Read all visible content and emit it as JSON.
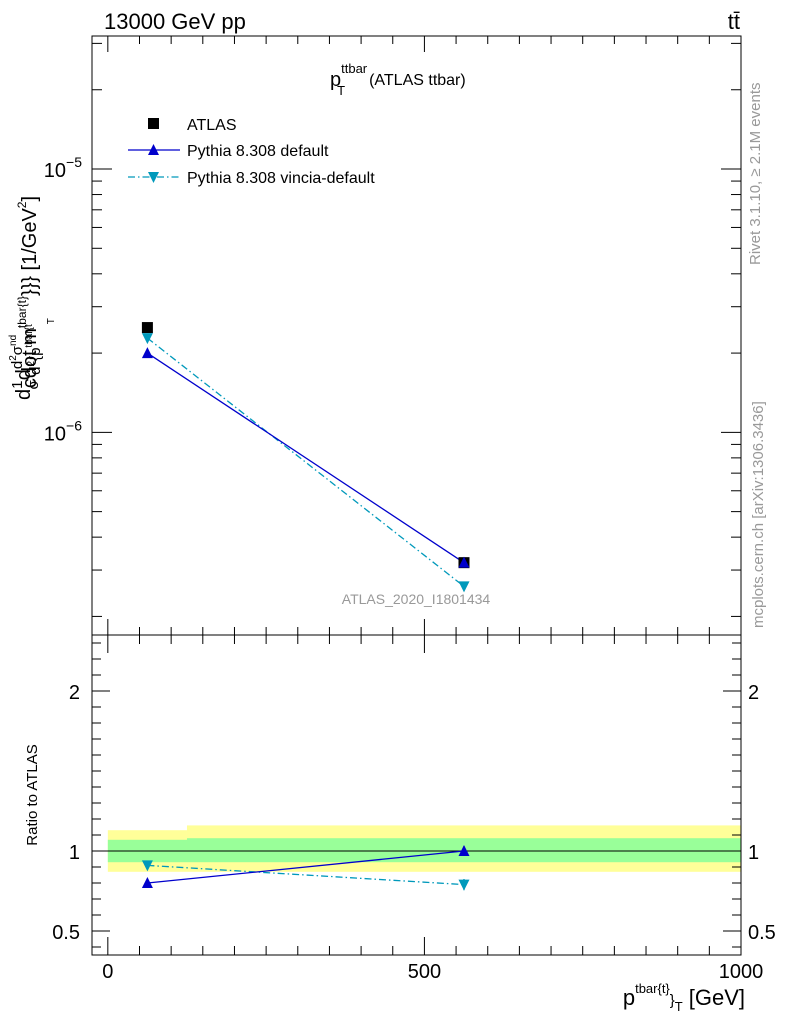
{
  "header": {
    "energy_label": "13000 GeV pp",
    "process_label": "tt̄"
  },
  "side_labels": {
    "rivet": "Rivet 3.1.10, ≥ 2.1M events",
    "source": "mcplots.cern.ch [arXiv:1306.3436]"
  },
  "watermark": "ATLAS_2020_I1801434",
  "colors": {
    "data": "#000000",
    "pythia_default": "#0000cc",
    "pythia_vincia": "#0099bb",
    "band_inner": "#99ff99",
    "band_outer": "#ffff99"
  },
  "chart_data": [
    {
      "type": "scatter",
      "title_main": "p",
      "title_sup": "ttbar",
      "title_sub": "T",
      "title_suffix": "(ATLAS ttbar)",
      "ylabel": "d(1/σ)d d²σ^{nd}/d² {p^{tbar{t}}_T cdot m^{tbar{t}}}} [1/GeV²]",
      "ylabel_parts": {
        "d1": "d",
        "frac_num": "1",
        "frac_den": "σ",
        "d2": "d",
        "num": "d",
        "num_sup": "2",
        "num_sym": "σ",
        "num_sup2": "nd",
        "den": "d",
        "den_sup": "2",
        "den_rest": "{p",
        "den_sup2": "tbar{t",
        "den_sub": "T",
        "rest": "cdot m",
        "rest_sup": "tbar{t}",
        "rest_tail": "}}} [1/GeV",
        "rest_tail_sup": "2",
        "rest_close": "]"
      },
      "yscale": "log",
      "ylim": [
        1.7e-07,
        3.2e-05
      ],
      "yticks": [
        {
          "value": 1e-05,
          "base": "10",
          "exp": "−5"
        },
        {
          "value": 1e-06,
          "base": "10",
          "exp": "−6"
        }
      ],
      "xlim": [
        -25,
        1000
      ],
      "legend_placement": "top-left",
      "series": [
        {
          "name": "ATLAS",
          "marker": "square",
          "x": [
            62.5,
            562.5
          ],
          "y": [
            2.5e-06,
            3.2e-07
          ]
        },
        {
          "name": "Pythia 8.308 default",
          "marker": "triangle-up",
          "line": "solid",
          "x": [
            62.5,
            562.5
          ],
          "y": [
            2e-06,
            3.2e-07
          ]
        },
        {
          "name": "Pythia 8.308 vincia-default",
          "marker": "triangle-down",
          "line": "dashdot",
          "x": [
            62.5,
            562.5
          ],
          "y": [
            2.28e-06,
            2.6e-07
          ]
        }
      ]
    },
    {
      "type": "scatter",
      "ylabel": "Ratio to ATLAS",
      "ylim": [
        0.35,
        2.35
      ],
      "yticks": [
        {
          "value": 2,
          "label": "2"
        },
        {
          "value": 1,
          "label": "1"
        },
        {
          "value": 0.5,
          "label": "0.5"
        }
      ],
      "xlim": [
        -25,
        1000
      ],
      "xticks": [
        {
          "value": 0,
          "label": "0"
        },
        {
          "value": 500,
          "label": "500"
        },
        {
          "value": 1000,
          "label": "1000"
        }
      ],
      "xlabel_parts": {
        "base": "p",
        "sup": "tbar{t}",
        "mid": "}",
        "sub": "T",
        "unit": "[GeV]"
      },
      "bins": [
        {
          "x_low": 0,
          "x_high": 125,
          "inner": [
            0.93,
            1.07
          ],
          "outer": [
            0.87,
            1.13
          ]
        },
        {
          "x_low": 125,
          "x_high": 1000,
          "inner": [
            0.93,
            1.08
          ],
          "outer": [
            0.87,
            1.16
          ]
        }
      ],
      "series": [
        {
          "name": "Pythia 8.308 default",
          "x": [
            62.5,
            562.5
          ],
          "y": [
            0.8,
            1.0
          ],
          "yerr": [
            0.02,
            0.03
          ]
        },
        {
          "name": "Pythia 8.308 vincia-default",
          "x": [
            62.5,
            562.5
          ],
          "y": [
            0.91,
            0.79
          ],
          "yerr": [
            0.02,
            0.035
          ]
        }
      ]
    }
  ]
}
